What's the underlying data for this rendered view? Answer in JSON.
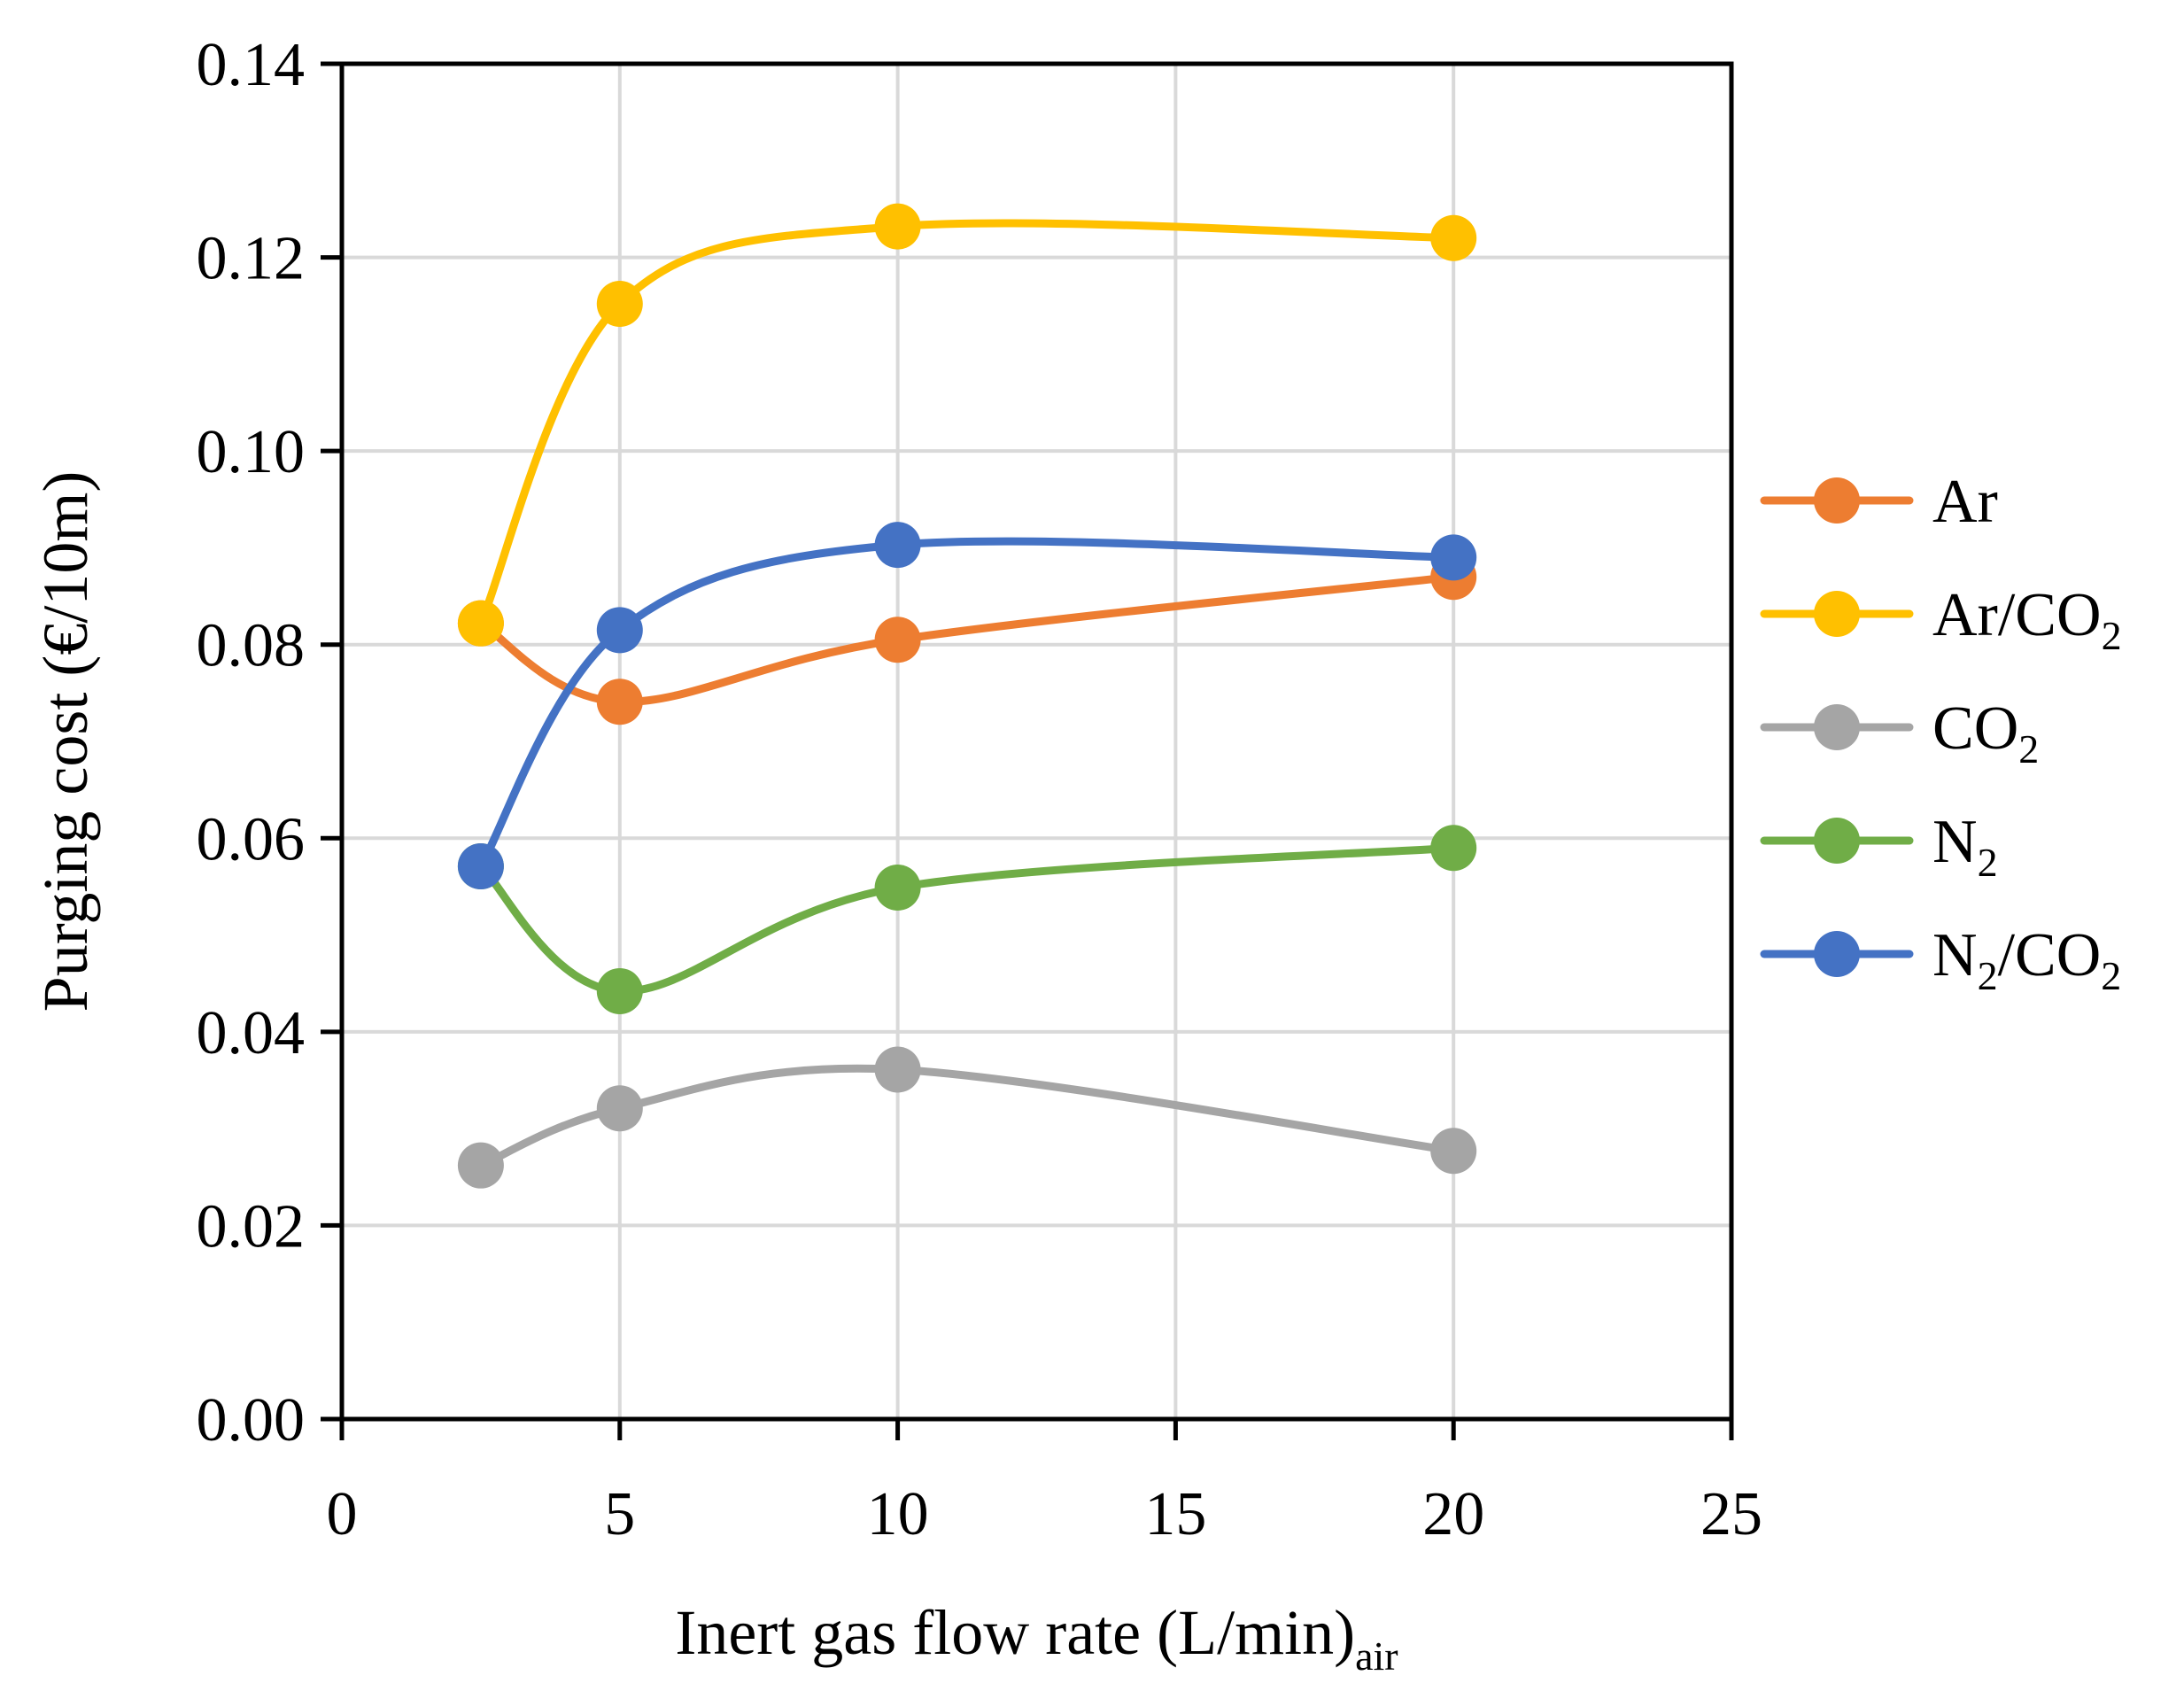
{
  "chart_data": {
    "type": "line",
    "smooth": true,
    "x_axis": {
      "title_main": "Inert gas flow rate (L/min)",
      "title_sub": "air",
      "min": 0,
      "max": 25,
      "step": 5,
      "ticks": [
        "0",
        "5",
        "10",
        "15",
        "20",
        "25"
      ]
    },
    "y_axis": {
      "title": "Purging cost (€/10m)",
      "min": 0,
      "max": 0.14,
      "step": 0.02,
      "ticks": [
        "0.00",
        "0.02",
        "0.04",
        "0.06",
        "0.08",
        "0.10",
        "0.12",
        "0.14"
      ]
    },
    "grid": true,
    "legend_position": "right",
    "x": [
      2.5,
      5,
      10,
      20
    ],
    "series": [
      {
        "name": "Ar",
        "label_main": "Ar",
        "label_sub": "",
        "label_tail": "",
        "color": "#ed7d31",
        "values": [
          0.0822,
          0.0741,
          0.0805,
          0.087
        ]
      },
      {
        "name": "Ar/CO2",
        "label_main": "Ar/CO",
        "label_sub": "2",
        "label_tail": "",
        "color": "#ffc000",
        "values": [
          0.0822,
          0.1152,
          0.1232,
          0.122
        ]
      },
      {
        "name": "CO2",
        "label_main": "CO",
        "label_sub": "2",
        "label_tail": "",
        "color": "#a5a5a5",
        "values": [
          0.0262,
          0.0321,
          0.0361,
          0.0277
        ]
      },
      {
        "name": "N2",
        "label_main": "N",
        "label_sub": "2",
        "label_tail": "",
        "color": "#70ad47",
        "values": [
          0.0571,
          0.0442,
          0.0549,
          0.059
        ]
      },
      {
        "name": "N2/CO2",
        "label_main": "N",
        "label_sub": "2",
        "label_tail": "/CO2",
        "color": "#4472c4",
        "values": [
          0.0571,
          0.0815,
          0.0903,
          0.089
        ]
      }
    ]
  }
}
